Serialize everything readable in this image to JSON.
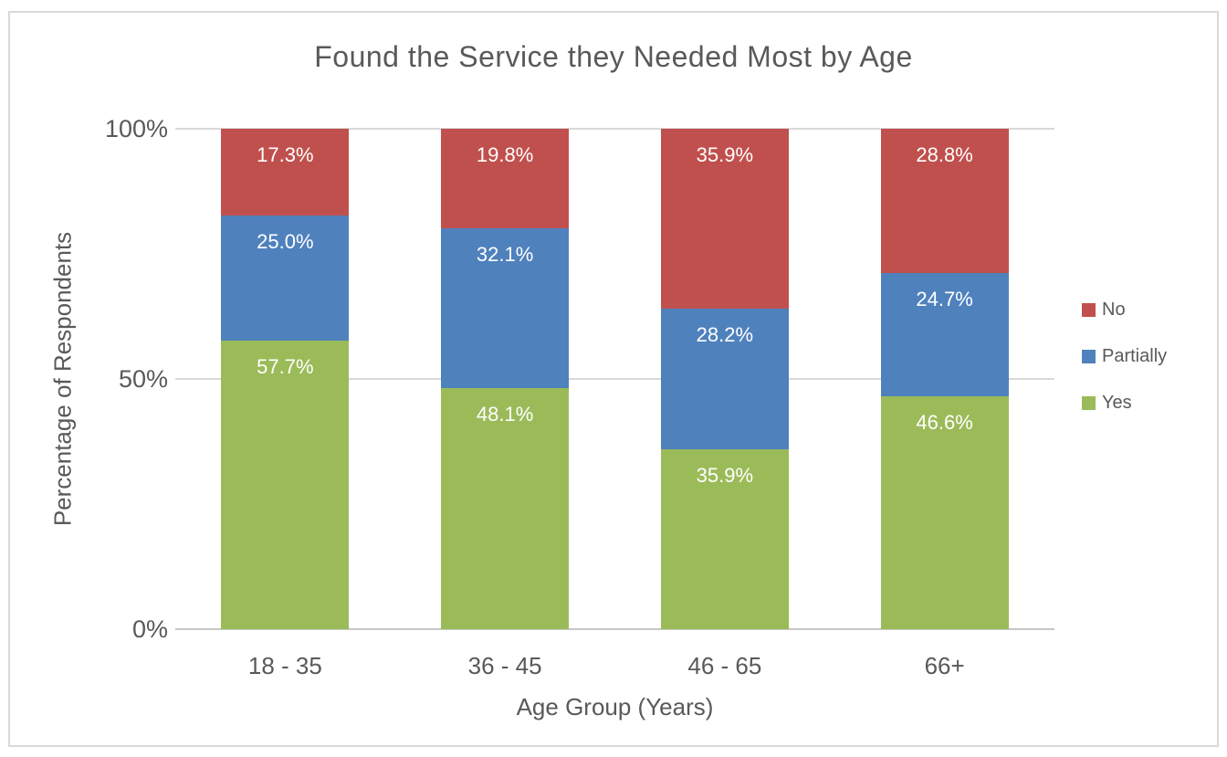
{
  "chart_data": {
    "type": "bar",
    "stacked": true,
    "title": "Found the Service they Needed Most by Age",
    "xlabel": "Age Group (Years)",
    "ylabel": "Percentage of Respondents",
    "categories": [
      "18 - 35",
      "36 - 45",
      "46 - 65",
      "66+"
    ],
    "series": [
      {
        "name": "Yes",
        "color": "#9BBB59",
        "values": [
          57.7,
          48.1,
          35.9,
          46.6
        ],
        "labels": [
          "57.7%",
          "48.1%",
          "35.9%",
          "46.6%"
        ]
      },
      {
        "name": "Partially",
        "color": "#4F81BD",
        "values": [
          25.0,
          32.1,
          28.2,
          24.7
        ],
        "labels": [
          "25.0%",
          "32.1%",
          "28.2%",
          "24.7%"
        ]
      },
      {
        "name": "No",
        "color": "#C0504D",
        "values": [
          17.3,
          19.8,
          35.9,
          28.8
        ],
        "labels": [
          "17.3%",
          "19.8%",
          "35.9%",
          "28.8%"
        ]
      }
    ],
    "yticks": [
      {
        "value": 0,
        "label": "0%"
      },
      {
        "value": 50,
        "label": "50%"
      },
      {
        "value": 100,
        "label": "100%"
      }
    ],
    "ylim": [
      0,
      100
    ],
    "grid": true,
    "legend": {
      "position": "right",
      "items": [
        "No",
        "Partially",
        "Yes"
      ]
    },
    "colors": {
      "text": "#595959",
      "grid": "#D9D9D9",
      "axis_line": "#C6C6C6",
      "data_label": "#FFFFFF",
      "frame_border": "#D9D9D9"
    }
  }
}
